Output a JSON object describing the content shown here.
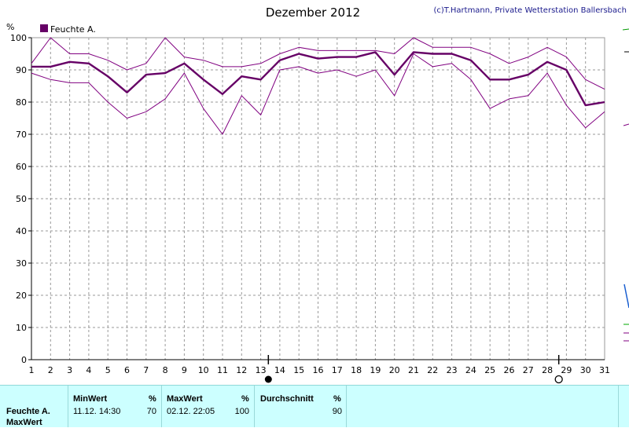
{
  "header": {
    "title": "Dezember 2012",
    "credit": "(c)T.Hartmann, Private Wetterstation Ballersbach"
  },
  "chart_data": {
    "type": "line",
    "title": "Dezember 2012",
    "ylabel": "%",
    "xlim": [
      1,
      31
    ],
    "ylim": [
      0,
      100
    ],
    "y_ticks": [
      0,
      10,
      20,
      30,
      40,
      50,
      60,
      70,
      80,
      90,
      100
    ],
    "x": [
      1,
      2,
      3,
      4,
      5,
      6,
      7,
      8,
      9,
      10,
      11,
      12,
      13,
      14,
      15,
      16,
      17,
      18,
      19,
      20,
      21,
      22,
      23,
      24,
      25,
      26,
      27,
      28,
      29,
      30,
      31
    ],
    "grid": true,
    "legend": "top-left",
    "series": [
      {
        "name": "Feuchte A.",
        "role": "avg",
        "color": "#660066",
        "values": [
          91,
          91,
          92.5,
          92,
          88,
          83,
          88.5,
          89,
          92,
          87,
          82.5,
          88,
          87,
          93,
          95,
          93.5,
          94,
          94,
          95.5,
          88.5,
          95.5,
          95,
          95,
          93,
          87,
          87,
          88.5,
          92.5,
          90,
          79,
          80
        ]
      },
      {
        "role": "max",
        "color": "#800080",
        "values": [
          92,
          100,
          95,
          95,
          93,
          90,
          92,
          100,
          94,
          93,
          91,
          91,
          92,
          95,
          97,
          96,
          96,
          96,
          96,
          95,
          100,
          97,
          97,
          97,
          95,
          92,
          94,
          97,
          94,
          87,
          84
        ]
      },
      {
        "role": "min",
        "color": "#800080",
        "values": [
          89,
          87,
          86,
          86,
          80,
          75,
          77,
          81,
          89,
          78,
          70,
          82,
          76,
          90,
          91,
          89,
          90,
          88,
          90,
          82,
          95,
          91,
          92,
          87,
          78,
          81,
          82,
          89,
          79,
          72,
          77
        ]
      }
    ],
    "markers": [
      {
        "type": "new-moon",
        "x": 13.4
      },
      {
        "type": "full-moon",
        "x": 28.6
      }
    ]
  },
  "stats": {
    "sensor_label": "Feuchte A.",
    "row_label": "MaxWert",
    "min_header": "MinWert",
    "max_header": "MaxWert",
    "avg_header": "Durchschnitt",
    "unit": "%",
    "min_datetime": "11.12.  14:30",
    "min_value": "70",
    "max_datetime": "02.12.  22:05",
    "max_value": "100",
    "avg_value": "90"
  }
}
